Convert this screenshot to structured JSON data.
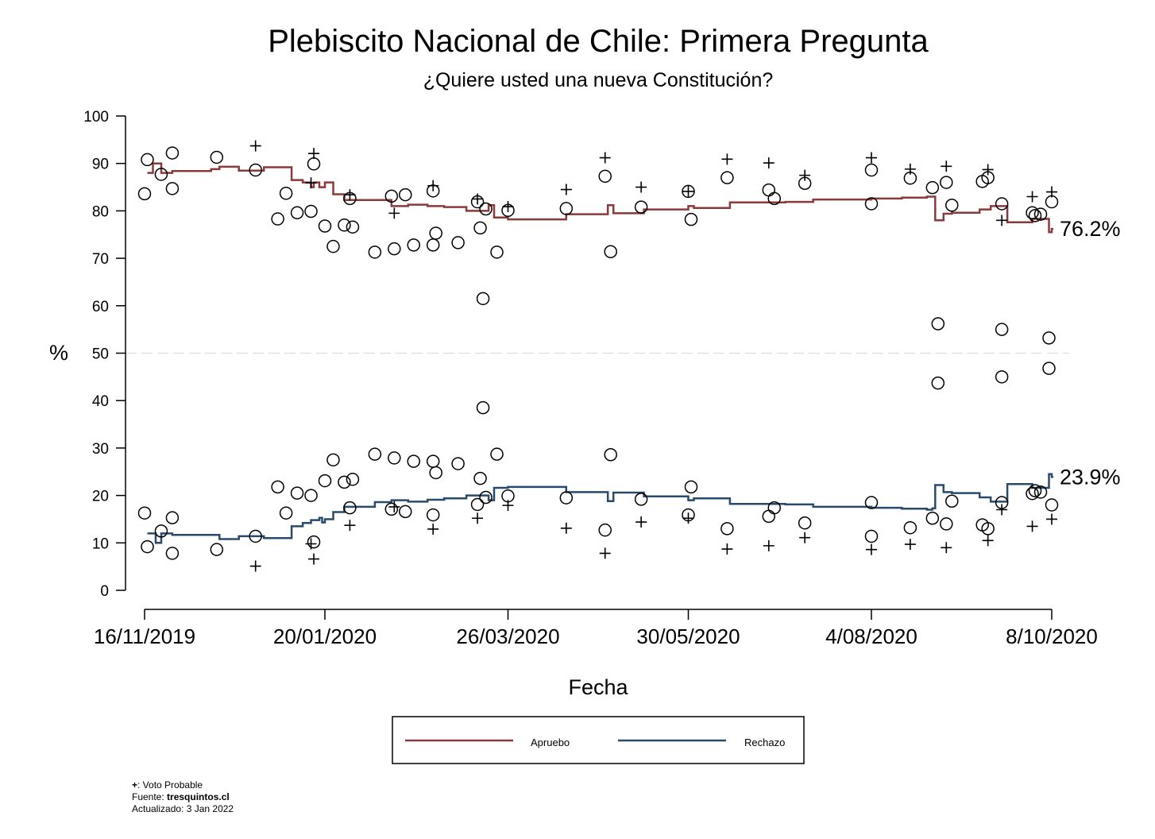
{
  "colors": {
    "apruebo": "#8b3a3a",
    "rechazo": "#2a4a6b",
    "marker": "#000000",
    "reference": "#d9d9d9"
  },
  "footnote": {
    "mark": "+",
    "mark_text": ": Voto Probable",
    "source_label": "Fuente: ",
    "source_value": "tresquintos.cl",
    "updated": "Actualizado: 3 Jan 2022"
  },
  "chart_data": {
    "type": "line",
    "title": "Plebiscito Nacional de Chile: Primera Pregunta",
    "subtitle": "¿Quiere usted una nueva Constitución?",
    "xlabel": "Fecha",
    "ylabel": "%",
    "ylim": [
      0,
      100
    ],
    "xlim": [
      "2019-11-16",
      "2020-10-08"
    ],
    "yticks": [
      0,
      10,
      20,
      30,
      40,
      50,
      60,
      70,
      80,
      90,
      100
    ],
    "xticks": [
      {
        "date": "2019-11-16",
        "label": "16/11/2019"
      },
      {
        "date": "2020-01-20",
        "label": "20/01/2020"
      },
      {
        "date": "2020-03-26",
        "label": "26/03/2020"
      },
      {
        "date": "2020-05-30",
        "label": "30/05/2020"
      },
      {
        "date": "2020-08-04",
        "label": "4/08/2020"
      },
      {
        "date": "2020-10-08",
        "label": "8/10/2020"
      }
    ],
    "reference_line": 50,
    "legend": {
      "position": "bottom",
      "entries": [
        "Apruebo",
        "Rechazo"
      ]
    },
    "end_labels": [
      "76.2%",
      "23.9%"
    ],
    "series": [
      {
        "name": "Apruebo",
        "type": "step",
        "points": [
          [
            "2019-11-17",
            88
          ],
          [
            "2019-11-19",
            90
          ],
          [
            "2019-11-22",
            88
          ],
          [
            "2019-11-26",
            88.4
          ],
          [
            "2019-12-10",
            88.8
          ],
          [
            "2019-12-13",
            89.3
          ],
          [
            "2019-12-20",
            88.5
          ],
          [
            "2019-12-29",
            89.2
          ],
          [
            "2020-01-08",
            86.5
          ],
          [
            "2020-01-12",
            86
          ],
          [
            "2020-01-15",
            85
          ],
          [
            "2020-01-16",
            86
          ],
          [
            "2020-01-18",
            85
          ],
          [
            "2020-01-20",
            86
          ],
          [
            "2020-01-23",
            83.5
          ],
          [
            "2020-01-27",
            82.3
          ],
          [
            "2020-02-13",
            81
          ],
          [
            "2020-02-19",
            81.3
          ],
          [
            "2020-02-26",
            81
          ],
          [
            "2020-03-03",
            80.8
          ],
          [
            "2020-03-11",
            80
          ],
          [
            "2020-03-19",
            81.2
          ],
          [
            "2020-03-21",
            78.6
          ],
          [
            "2020-03-26",
            78.2
          ],
          [
            "2020-04-16",
            79.3
          ],
          [
            "2020-05-01",
            81.2
          ],
          [
            "2020-05-03",
            79.5
          ],
          [
            "2020-05-14",
            80.3
          ],
          [
            "2020-05-30",
            81
          ],
          [
            "2020-06-01",
            80.6
          ],
          [
            "2020-06-14",
            81.8
          ],
          [
            "2020-07-04",
            81.9
          ],
          [
            "2020-07-14",
            82.4
          ],
          [
            "2020-08-04",
            82.6
          ],
          [
            "2020-08-15",
            82.8
          ],
          [
            "2020-08-24",
            83
          ],
          [
            "2020-08-27",
            78
          ],
          [
            "2020-08-30",
            79.4
          ],
          [
            "2020-09-02",
            79.6
          ],
          [
            "2020-09-12",
            80.3
          ],
          [
            "2020-09-16",
            81
          ],
          [
            "2020-09-22",
            77.6
          ],
          [
            "2020-10-01",
            78.3
          ],
          [
            "2020-10-07",
            75.5
          ],
          [
            "2020-10-08",
            76.2
          ]
        ]
      },
      {
        "name": "Rechazo",
        "type": "step",
        "points": [
          [
            "2019-11-17",
            12
          ],
          [
            "2019-11-20",
            10
          ],
          [
            "2019-11-22",
            12
          ],
          [
            "2019-11-26",
            11.7
          ],
          [
            "2019-12-13",
            10.8
          ],
          [
            "2019-12-20",
            11.4
          ],
          [
            "2019-12-29",
            11
          ],
          [
            "2020-01-08",
            13.5
          ],
          [
            "2020-01-12",
            14.2
          ],
          [
            "2020-01-15",
            14.8
          ],
          [
            "2020-01-18",
            15.3
          ],
          [
            "2020-01-19",
            14.3
          ],
          [
            "2020-01-20",
            15
          ],
          [
            "2020-01-23",
            16.5
          ],
          [
            "2020-01-27",
            17.6
          ],
          [
            "2020-02-07",
            18.6
          ],
          [
            "2020-02-13",
            19
          ],
          [
            "2020-02-19",
            18.7
          ],
          [
            "2020-02-26",
            19.1
          ],
          [
            "2020-03-03",
            19.4
          ],
          [
            "2020-03-11",
            20
          ],
          [
            "2020-03-19",
            19
          ],
          [
            "2020-03-21",
            21.6
          ],
          [
            "2020-03-26",
            21.8
          ],
          [
            "2020-04-16",
            20.7
          ],
          [
            "2020-05-01",
            18.8
          ],
          [
            "2020-05-03",
            20.6
          ],
          [
            "2020-05-14",
            19.8
          ],
          [
            "2020-05-30",
            19
          ],
          [
            "2020-06-01",
            19.4
          ],
          [
            "2020-06-14",
            18.2
          ],
          [
            "2020-07-04",
            18.1
          ],
          [
            "2020-07-14",
            17.6
          ],
          [
            "2020-08-04",
            17.4
          ],
          [
            "2020-08-15",
            17.2
          ],
          [
            "2020-08-24",
            17
          ],
          [
            "2020-08-26",
            17.3
          ],
          [
            "2020-08-27",
            22.2
          ],
          [
            "2020-08-30",
            20.7
          ],
          [
            "2020-09-02",
            20.5
          ],
          [
            "2020-09-12",
            19.6
          ],
          [
            "2020-09-16",
            18.7
          ],
          [
            "2020-09-22",
            22.4
          ],
          [
            "2020-10-01",
            21.6
          ],
          [
            "2020-10-07",
            24.5
          ],
          [
            "2020-10-08",
            23.9
          ]
        ]
      },
      {
        "name": "",
        "type": "scatter",
        "marker": "circle",
        "points": [
          [
            "2019-11-16",
            83.6
          ],
          [
            "2019-11-17",
            90.8
          ],
          [
            "2019-11-22",
            87.7
          ],
          [
            "2019-11-26",
            92.2
          ],
          [
            "2019-11-26",
            84.7
          ],
          [
            "2019-12-12",
            91.3
          ],
          [
            "2019-12-26",
            88.6
          ],
          [
            "2020-01-03",
            78.3
          ],
          [
            "2020-01-06",
            83.7
          ],
          [
            "2020-01-10",
            79.6
          ],
          [
            "2020-01-15",
            79.9
          ],
          [
            "2020-01-16",
            89.9
          ],
          [
            "2020-01-20",
            76.8
          ],
          [
            "2020-01-23",
            72.5
          ],
          [
            "2020-01-27",
            77
          ],
          [
            "2020-01-29",
            82.6
          ],
          [
            "2020-01-30",
            76.6
          ],
          [
            "2020-02-07",
            71.3
          ],
          [
            "2020-02-13",
            83.1
          ],
          [
            "2020-02-14",
            72
          ],
          [
            "2020-02-18",
            83.4
          ],
          [
            "2020-02-21",
            72.8
          ],
          [
            "2020-02-28",
            72.8
          ],
          [
            "2020-02-29",
            75.3
          ],
          [
            "2020-02-28",
            84.2
          ],
          [
            "2020-03-08",
            73.3
          ],
          [
            "2020-03-15",
            81.9
          ],
          [
            "2020-03-16",
            76.4
          ],
          [
            "2020-03-17",
            61.5
          ],
          [
            "2020-03-18",
            80.4
          ],
          [
            "2020-03-22",
            71.3
          ],
          [
            "2020-03-26",
            80.1
          ],
          [
            "2020-04-16",
            80.5
          ],
          [
            "2020-04-30",
            87.3
          ],
          [
            "2020-05-02",
            71.4
          ],
          [
            "2020-05-13",
            80.8
          ],
          [
            "2020-05-30",
            84.1
          ],
          [
            "2020-05-31",
            78.2
          ],
          [
            "2020-06-13",
            87
          ],
          [
            "2020-06-28",
            84.4
          ],
          [
            "2020-06-30",
            82.6
          ],
          [
            "2020-07-11",
            85.8
          ],
          [
            "2020-08-04",
            81.5
          ],
          [
            "2020-08-04",
            88.6
          ],
          [
            "2020-08-18",
            86.9
          ],
          [
            "2020-08-26",
            84.9
          ],
          [
            "2020-08-31",
            86
          ],
          [
            "2020-09-02",
            81.2
          ],
          [
            "2020-09-13",
            86.2
          ],
          [
            "2020-09-15",
            87
          ],
          [
            "2020-09-20",
            81.5
          ],
          [
            "2020-10-01",
            79.6
          ],
          [
            "2020-10-02",
            79
          ],
          [
            "2020-10-04",
            79.3
          ],
          [
            "2020-10-08",
            81.9
          ],
          [
            "2020-08-28",
            56.2
          ],
          [
            "2020-09-20",
            55
          ],
          [
            "2020-10-07",
            53.2
          ],
          [
            "2020-08-28",
            43.7
          ],
          [
            "2020-09-20",
            45
          ],
          [
            "2020-10-07",
            46.8
          ],
          [
            "2019-11-16",
            16.3
          ],
          [
            "2019-11-17",
            9.2
          ],
          [
            "2019-11-22",
            12.5
          ],
          [
            "2019-11-26",
            15.3
          ],
          [
            "2019-11-26",
            7.8
          ],
          [
            "2019-12-12",
            8.6
          ],
          [
            "2019-12-26",
            11.4
          ],
          [
            "2020-01-03",
            21.8
          ],
          [
            "2020-01-06",
            16.3
          ],
          [
            "2020-01-10",
            20.5
          ],
          [
            "2020-01-15",
            20
          ],
          [
            "2020-01-16",
            10.2
          ],
          [
            "2020-01-20",
            23.1
          ],
          [
            "2020-01-23",
            27.5
          ],
          [
            "2020-01-27",
            22.8
          ],
          [
            "2020-01-29",
            17.4
          ],
          [
            "2020-01-30",
            23.4
          ],
          [
            "2020-02-07",
            28.7
          ],
          [
            "2020-02-13",
            17.1
          ],
          [
            "2020-02-14",
            27.9
          ],
          [
            "2020-02-18",
            16.6
          ],
          [
            "2020-02-21",
            27.2
          ],
          [
            "2020-02-28",
            27.2
          ],
          [
            "2020-02-29",
            24.8
          ],
          [
            "2020-02-28",
            15.9
          ],
          [
            "2020-03-08",
            26.7
          ],
          [
            "2020-03-15",
            18.1
          ],
          [
            "2020-03-16",
            23.6
          ],
          [
            "2020-03-17",
            38.5
          ],
          [
            "2020-03-18",
            19.6
          ],
          [
            "2020-03-22",
            28.7
          ],
          [
            "2020-03-26",
            19.9
          ],
          [
            "2020-04-16",
            19.5
          ],
          [
            "2020-04-30",
            12.7
          ],
          [
            "2020-05-02",
            28.6
          ],
          [
            "2020-05-13",
            19.2
          ],
          [
            "2020-05-30",
            15.9
          ],
          [
            "2020-05-31",
            21.8
          ],
          [
            "2020-06-13",
            13
          ],
          [
            "2020-06-28",
            15.6
          ],
          [
            "2020-06-30",
            17.4
          ],
          [
            "2020-07-11",
            14.2
          ],
          [
            "2020-08-04",
            18.5
          ],
          [
            "2020-08-04",
            11.4
          ],
          [
            "2020-08-18",
            13.2
          ],
          [
            "2020-08-26",
            15.2
          ],
          [
            "2020-08-31",
            14
          ],
          [
            "2020-09-02",
            18.8
          ],
          [
            "2020-09-13",
            13.8
          ],
          [
            "2020-09-15",
            13
          ],
          [
            "2020-09-20",
            18.5
          ],
          [
            "2020-10-01",
            20.4
          ],
          [
            "2020-10-02",
            21
          ],
          [
            "2020-10-04",
            20.7
          ],
          [
            "2020-10-08",
            18
          ]
        ]
      },
      {
        "name": "",
        "type": "scatter",
        "marker": "plus",
        "points": [
          [
            "2019-12-26",
            93.7
          ],
          [
            "2020-01-16",
            92.1
          ],
          [
            "2020-01-15",
            85.9
          ],
          [
            "2020-01-29",
            83.4
          ],
          [
            "2020-02-14",
            79.5
          ],
          [
            "2020-02-28",
            85.3
          ],
          [
            "2020-03-15",
            82.5
          ],
          [
            "2020-03-26",
            80.9
          ],
          [
            "2020-04-16",
            84.5
          ],
          [
            "2020-04-30",
            91.2
          ],
          [
            "2020-05-13",
            85
          ],
          [
            "2020-05-30",
            84.1
          ],
          [
            "2020-06-13",
            90.9
          ],
          [
            "2020-06-28",
            90.1
          ],
          [
            "2020-07-11",
            87.5
          ],
          [
            "2020-08-04",
            91.2
          ],
          [
            "2020-08-18",
            88.8
          ],
          [
            "2020-08-31",
            89.4
          ],
          [
            "2020-09-15",
            88.7
          ],
          [
            "2020-09-20",
            78
          ],
          [
            "2020-10-01",
            83
          ],
          [
            "2020-10-08",
            84
          ],
          [
            "2019-12-26",
            5.1
          ],
          [
            "2020-01-15",
            9.8
          ],
          [
            "2020-01-16",
            6.6
          ],
          [
            "2020-01-29",
            13.7
          ],
          [
            "2020-02-14",
            17.6
          ],
          [
            "2020-02-28",
            12.9
          ],
          [
            "2020-03-15",
            15.2
          ],
          [
            "2020-03-26",
            17.9
          ],
          [
            "2020-04-16",
            13.1
          ],
          [
            "2020-04-30",
            7.8
          ],
          [
            "2020-05-13",
            14.4
          ],
          [
            "2020-05-30",
            15.2
          ],
          [
            "2020-06-13",
            8.7
          ],
          [
            "2020-06-28",
            9.4
          ],
          [
            "2020-07-11",
            11.1
          ],
          [
            "2020-08-04",
            8.6
          ],
          [
            "2020-08-18",
            9.7
          ],
          [
            "2020-08-31",
            9
          ],
          [
            "2020-09-15",
            10.5
          ],
          [
            "2020-09-20",
            17
          ],
          [
            "2020-10-01",
            13.5
          ],
          [
            "2020-10-08",
            15
          ]
        ]
      }
    ]
  }
}
